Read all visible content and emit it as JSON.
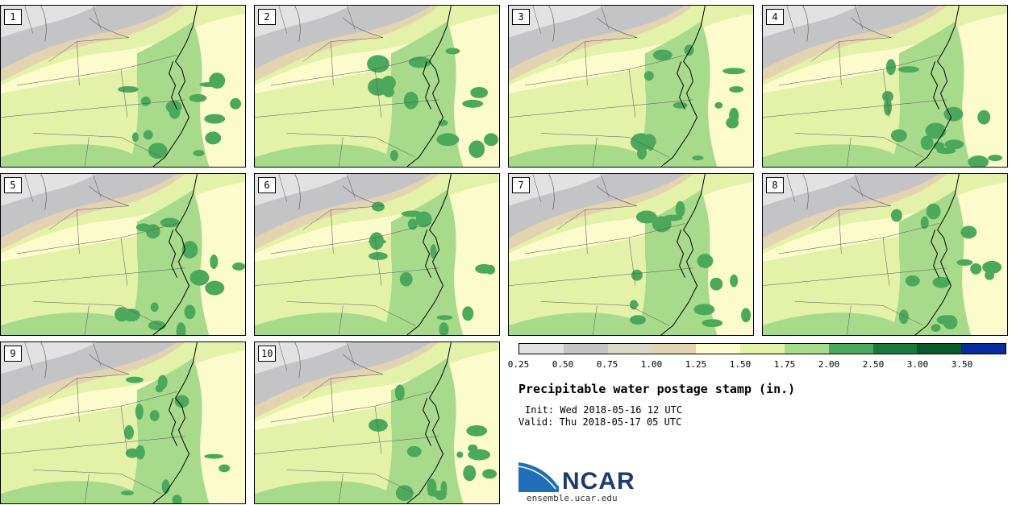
{
  "panels": [
    {
      "label": "1"
    },
    {
      "label": "2"
    },
    {
      "label": "3"
    },
    {
      "label": "4"
    },
    {
      "label": "5"
    },
    {
      "label": "6"
    },
    {
      "label": "7"
    },
    {
      "label": "8"
    },
    {
      "label": "9"
    },
    {
      "label": "10"
    }
  ],
  "colorbar": {
    "thresholds": [
      "0.25",
      "0.50",
      "0.75",
      "1.00",
      "1.25",
      "1.50",
      "1.75",
      "2.00",
      "2.50",
      "3.00",
      "3.50"
    ],
    "colors": [
      "#e2e2e2",
      "#c4c4c6",
      "#d9d9c6",
      "#e2d4b0",
      "#fbfbcc",
      "#e4f1a8",
      "#a8da8c",
      "#4ca85a",
      "#1a7a3a",
      "#0b5a2a",
      "#0a2aa0"
    ]
  },
  "title": "Precipitable water postage stamp (in.)",
  "init": "Init: Wed 2018-05-16 12 UTC",
  "valid": "Valid: Thu 2018-05-17 05 UTC",
  "logo_text": "NCAR",
  "website": "ensemble.ucar.edu"
}
